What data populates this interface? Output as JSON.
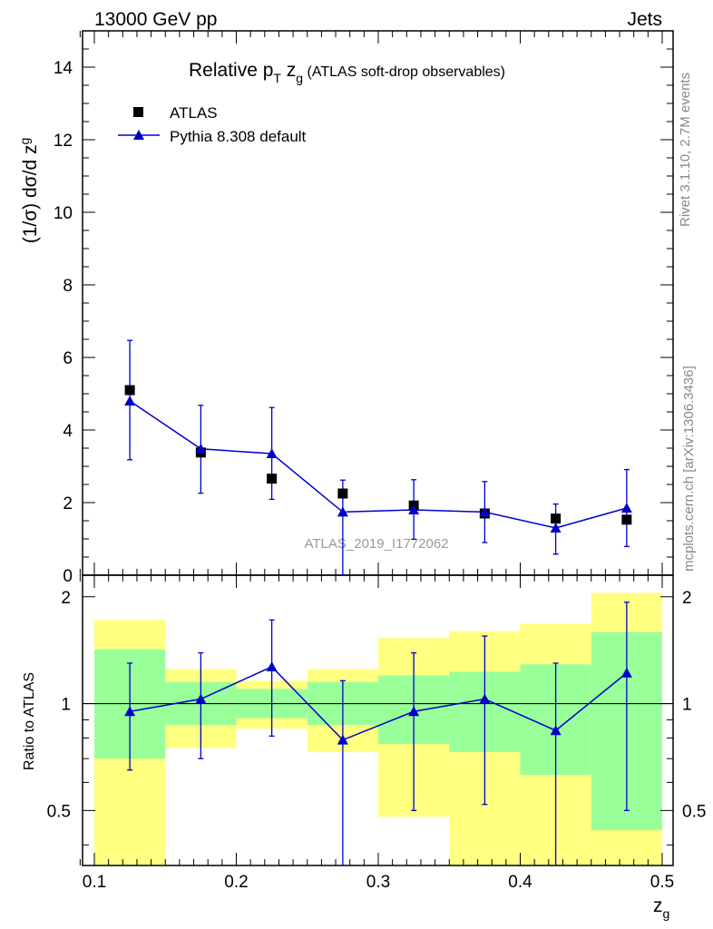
{
  "header": {
    "left_label": "13000 GeV pp",
    "right_label": "Jets"
  },
  "plot_title_main": "Relative p",
  "plot_title_sub_T": "T",
  "plot_title_mid": " z",
  "plot_title_sub_g": "g",
  "plot_title_suffix": " (ATLAS soft-drop observables)",
  "side_text": {
    "rivet": "Rivet 3.1.10,  2.7M events",
    "mcplots": "mcplots.cern.ch [arXiv:1306.3436]"
  },
  "watermark": "ATLAS_2019_I1772062",
  "legend": {
    "data_label": "ATLAS",
    "mc_label": "Pythia 8.308 default"
  },
  "axes": {
    "ylabel_main": "(1/σ) dσ/d z",
    "ylabel_main_sub": "g",
    "ylabel_ratio": "Ratio to ATLAS",
    "xlabel": "z",
    "xlabel_sub": "g"
  },
  "colors": {
    "mc_line": "#0000cc",
    "data_marker": "#000000",
    "band_inner": "#99ff99",
    "band_outer": "#ffff80"
  },
  "chart_data": {
    "type": "scatter",
    "xlim": [
      0.09,
      0.5
    ],
    "main": {
      "ylim": [
        0,
        15
      ],
      "yticks": [
        0,
        2,
        4,
        6,
        8,
        10,
        12,
        14
      ],
      "ytick_labels": [
        "0",
        "2",
        "4",
        "6",
        "8",
        "10",
        "12",
        "14"
      ]
    },
    "ratio": {
      "ylim": [
        0.35,
        2.3
      ],
      "scale": "log",
      "yticks": [
        0.5,
        1,
        2
      ],
      "ytick_labels": [
        "0.5",
        "1",
        "2"
      ]
    },
    "xticks": [
      0.1,
      0.2,
      0.3,
      0.4,
      0.5
    ],
    "xtick_labels": [
      "0.1",
      "0.2",
      "0.3",
      "0.4",
      "0.5"
    ],
    "bins": [
      [
        0.1,
        0.15
      ],
      [
        0.15,
        0.2
      ],
      [
        0.2,
        0.25
      ],
      [
        0.25,
        0.3
      ],
      [
        0.3,
        0.35
      ],
      [
        0.35,
        0.4
      ],
      [
        0.4,
        0.45
      ],
      [
        0.45,
        0.5
      ]
    ],
    "series": [
      {
        "name": "ATLAS",
        "x": [
          0.125,
          0.175,
          0.225,
          0.275,
          0.325,
          0.375,
          0.425,
          0.475
        ],
        "y": [
          5.1,
          3.38,
          2.66,
          2.25,
          1.92,
          1.7,
          1.56,
          1.53
        ]
      },
      {
        "name": "Pythia 8.308 default",
        "x": [
          0.125,
          0.175,
          0.225,
          0.275,
          0.325,
          0.375,
          0.425,
          0.475
        ],
        "y": [
          4.8,
          3.48,
          3.35,
          1.74,
          1.8,
          1.74,
          1.3,
          1.85
        ],
        "yerr_up": [
          6.47,
          4.68,
          4.62,
          2.62,
          2.63,
          2.58,
          1.96,
          2.91
        ],
        "yerr_down": [
          3.18,
          2.26,
          2.09,
          0.0,
          0.99,
          0.9,
          0.58,
          0.79
        ],
        "ratio": [
          0.95,
          1.03,
          1.27,
          0.79,
          0.95,
          1.03,
          0.84,
          1.22
        ],
        "ratio_up": [
          1.3,
          1.39,
          1.72,
          1.16,
          1.39,
          1.55,
          1.3,
          1.93
        ],
        "ratio_down": [
          0.65,
          0.7,
          0.81,
          0.3,
          0.5,
          0.52,
          0.3,
          0.5
        ]
      }
    ],
    "ratio_bands": {
      "inner_low": [
        0.7,
        0.87,
        0.91,
        0.87,
        0.77,
        0.73,
        0.63,
        0.44
      ],
      "inner_high": [
        1.42,
        1.15,
        1.1,
        1.15,
        1.2,
        1.23,
        1.29,
        1.59
      ],
      "outer_low": [
        0.35,
        0.75,
        0.85,
        0.73,
        0.48,
        0.35,
        0.35,
        0.35
      ],
      "outer_high": [
        1.72,
        1.25,
        1.16,
        1.25,
        1.53,
        1.6,
        1.68,
        2.05
      ]
    }
  }
}
